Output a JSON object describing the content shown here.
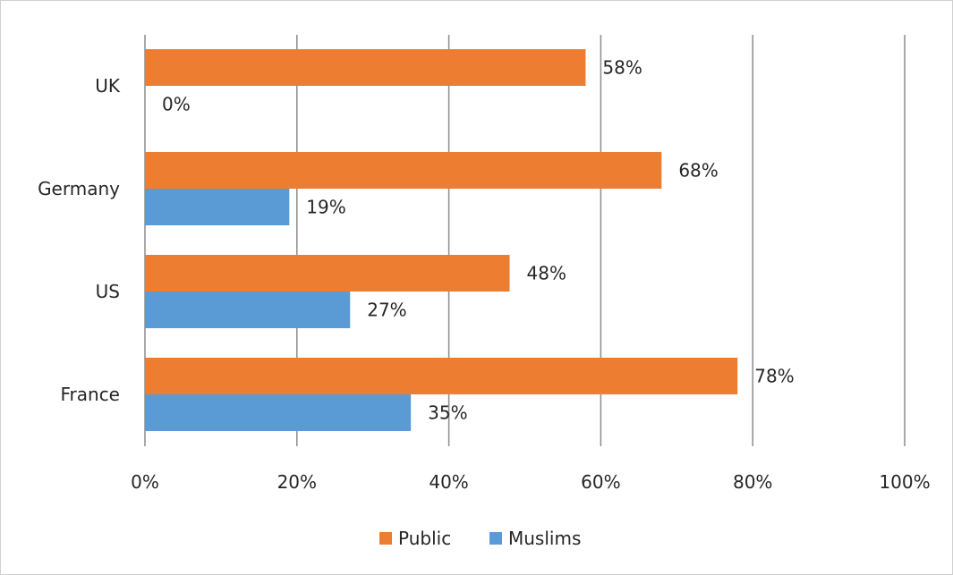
{
  "chart_data": {
    "type": "bar",
    "orientation": "horizontal",
    "categories": [
      "UK",
      "Germany",
      "US",
      "France"
    ],
    "series": [
      {
        "name": "Public",
        "color": "#ED7D31",
        "values": [
          58,
          68,
          48,
          78
        ],
        "labels": [
          "58%",
          "68%",
          "48%",
          "78%"
        ]
      },
      {
        "name": "Muslims",
        "color": "#5B9BD5",
        "values": [
          0,
          19,
          27,
          35
        ],
        "labels": [
          "0%",
          "19%",
          "27%",
          "35%"
        ]
      }
    ],
    "xlim": [
      0,
      100
    ],
    "x_ticks": [
      0,
      20,
      40,
      60,
      80,
      100
    ],
    "x_tick_labels": [
      "0%",
      "20%",
      "40%",
      "60%",
      "80%",
      "100%"
    ],
    "grid": "vertical",
    "legend_position": "bottom"
  }
}
